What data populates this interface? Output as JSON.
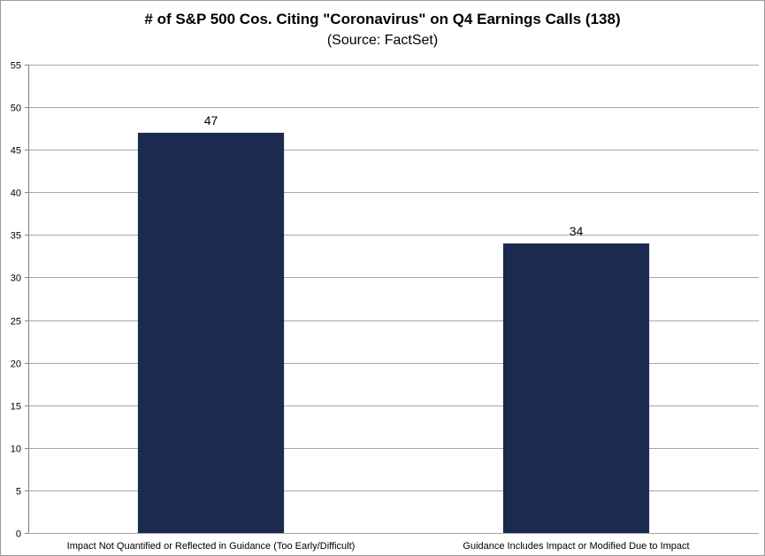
{
  "chart_data": {
    "type": "bar",
    "title": "# of S&P 500 Cos. Citing \"Coronavirus\" on Q4 Earnings Calls (138)",
    "subtitle": "(Source: FactSet)",
    "categories": [
      "Impact Not Quantified or Reflected in Guidance (Too Early/Difficult)",
      "Guidance Includes Impact or Modified Due to Impact"
    ],
    "values": [
      47,
      34
    ],
    "data_labels": [
      "47",
      "34"
    ],
    "ylim": [
      0,
      55
    ],
    "yticks": [
      0,
      5,
      10,
      15,
      20,
      25,
      30,
      35,
      40,
      45,
      50,
      55
    ],
    "xlabel": "",
    "ylabel": "",
    "grid": true,
    "legend": "none",
    "bar_color": "#1b2a4f",
    "gridline_color": "#a6a6a6"
  }
}
